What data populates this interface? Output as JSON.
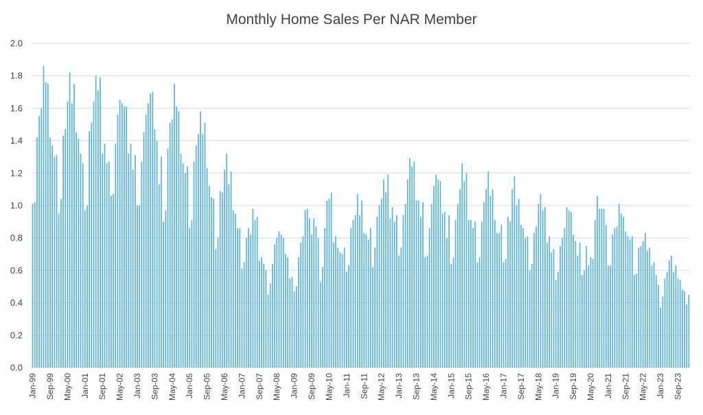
{
  "colors": {
    "bar": "#5ab4df",
    "grid": "#d9d9d9",
    "text": "#404040",
    "background": "#ffffff"
  },
  "chart_data": {
    "type": "bar",
    "title": "Monthly Home Sales Per NAR Member",
    "xlabel": "",
    "ylabel": "",
    "ylim": [
      0,
      2.0
    ],
    "yticks": [
      "0.0",
      "0.2",
      "0.4",
      "0.6",
      "0.8",
      "1.0",
      "1.2",
      "1.4",
      "1.6",
      "1.8",
      "2.0"
    ],
    "ytick_values": [
      0,
      0.2,
      0.4,
      0.6,
      0.8,
      1.0,
      1.2,
      1.4,
      1.6,
      1.8,
      2.0
    ],
    "start_month": "Jan-99",
    "x_tick_labels": [
      "Jan-99",
      "Sep-99",
      "May-00",
      "Jan-01",
      "Sep-01",
      "May-02",
      "Jan-03",
      "Sep-03",
      "May-04",
      "Jan-05",
      "Sep-05",
      "May-06",
      "Jan-07",
      "Sep-07",
      "May-08",
      "Jan-09",
      "Sep-09",
      "May-10",
      "Jan-11",
      "Sep-11",
      "May-12",
      "Jan-13",
      "Sep-13",
      "May-14",
      "Jan-15",
      "Sep-15",
      "May-16",
      "Jan-17",
      "Sep-17",
      "May-18",
      "Jan-19",
      "Sep-19",
      "May-20",
      "Jan-21",
      "Sep-21",
      "May-22",
      "Jan-23",
      "Sep-23"
    ],
    "tick_every_months": 8,
    "values": [
      1.01,
      1.02,
      1.42,
      1.55,
      1.6,
      1.86,
      1.76,
      1.75,
      1.42,
      1.37,
      1.3,
      1.31,
      0.95,
      1.04,
      1.43,
      1.47,
      1.64,
      1.82,
      1.63,
      1.75,
      1.45,
      1.41,
      1.32,
      1.26,
      0.97,
      1.0,
      1.46,
      1.51,
      1.64,
      1.8,
      1.71,
      1.79,
      1.32,
      1.38,
      1.26,
      1.27,
      1.06,
      1.07,
      1.38,
      1.56,
      1.65,
      1.63,
      1.61,
      1.61,
      1.32,
      1.38,
      1.22,
      1.31,
      1.0,
      1.0,
      1.27,
      1.45,
      1.56,
      1.63,
      1.69,
      1.7,
      1.47,
      1.4,
      1.13,
      1.3,
      0.9,
      0.97,
      1.35,
      1.51,
      1.53,
      1.75,
      1.61,
      1.58,
      1.32,
      1.26,
      1.2,
      1.24,
      0.86,
      0.91,
      1.27,
      1.37,
      1.44,
      1.58,
      1.44,
      1.51,
      1.23,
      1.12,
      1.05,
      1.04,
      0.73,
      0.8,
      1.09,
      1.08,
      1.22,
      1.32,
      1.13,
      1.21,
      0.97,
      0.95,
      0.86,
      0.86,
      0.61,
      0.65,
      0.8,
      0.86,
      0.82,
      0.98,
      0.91,
      0.93,
      0.66,
      0.68,
      0.64,
      0.6,
      0.45,
      0.52,
      0.64,
      0.76,
      0.8,
      0.84,
      0.82,
      0.8,
      0.7,
      0.68,
      0.55,
      0.56,
      0.47,
      0.5,
      0.68,
      0.77,
      0.81,
      0.97,
      0.98,
      0.92,
      0.82,
      0.92,
      0.87,
      0.8,
      0.53,
      0.62,
      0.86,
      1.03,
      1.04,
      1.08,
      0.77,
      0.81,
      0.74,
      0.71,
      0.7,
      0.74,
      0.59,
      0.63,
      0.86,
      0.91,
      0.94,
      1.07,
      0.94,
      1.03,
      0.83,
      0.82,
      0.79,
      0.86,
      0.62,
      0.74,
      0.93,
      1.0,
      1.04,
      1.16,
      1.08,
      1.19,
      0.92,
      0.99,
      0.9,
      0.94,
      0.69,
      0.74,
      0.94,
      1.01,
      1.16,
      1.29,
      1.24,
      1.27,
      1.03,
      1.03,
      0.93,
      1.02,
      0.68,
      0.69,
      0.86,
      1.01,
      1.12,
      1.19,
      1.16,
      1.15,
      0.95,
      0.96,
      0.8,
      0.94,
      0.64,
      0.68,
      0.91,
      1.01,
      1.1,
      1.26,
      1.15,
      1.2,
      0.91,
      0.91,
      0.86,
      0.9,
      0.65,
      0.68,
      0.9,
      1.02,
      1.1,
      1.21,
      1.06,
      1.1,
      0.91,
      0.83,
      0.83,
      0.88,
      0.65,
      0.67,
      0.93,
      0.9,
      1.1,
      1.18,
      1.0,
      1.04,
      0.88,
      0.86,
      0.8,
      0.81,
      0.6,
      0.64,
      0.83,
      0.87,
      1.01,
      1.07,
      0.97,
      0.99,
      0.77,
      0.81,
      0.71,
      0.73,
      0.54,
      0.59,
      0.75,
      0.8,
      0.86,
      0.99,
      0.97,
      0.96,
      0.82,
      0.78,
      0.69,
      0.77,
      0.57,
      0.6,
      0.75,
      0.63,
      0.68,
      0.67,
      0.91,
      1.06,
      0.98,
      0.98,
      0.98,
      0.88,
      0.63,
      0.63,
      0.82,
      0.86,
      0.87,
      1.01,
      0.95,
      0.93,
      0.84,
      0.81,
      0.79,
      0.81,
      0.57,
      0.58,
      0.74,
      0.75,
      0.78,
      0.83,
      0.72,
      0.74,
      0.63,
      0.65,
      0.57,
      0.51,
      0.37,
      0.44,
      0.55,
      0.59,
      0.66,
      0.69,
      0.59,
      0.63,
      0.55,
      0.54,
      0.48,
      0.47,
      0.39,
      0.45
    ]
  }
}
